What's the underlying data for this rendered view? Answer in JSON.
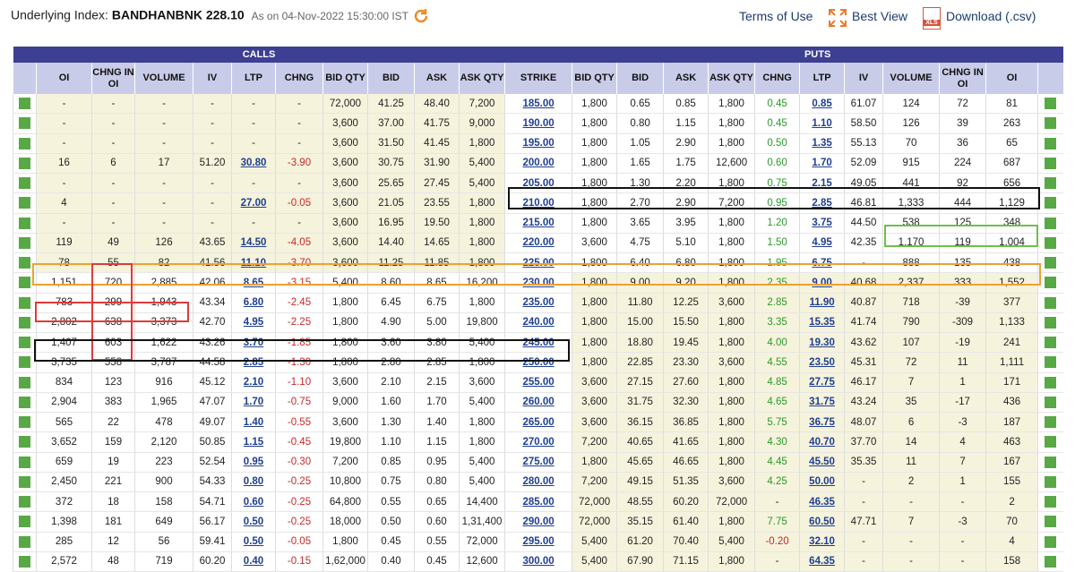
{
  "header": {
    "label": "Underlying Index:",
    "symbol": "BANDHANBNK 228.10",
    "as_on": "As on 04-Nov-2022 15:30:00 IST",
    "links": [
      "Terms of Use",
      "Best View",
      "Download (.csv)"
    ],
    "xls_icon": "XLS"
  },
  "table": {
    "groups": [
      "CALLS",
      "PUTS"
    ],
    "columns": [
      "OI",
      "CHNG IN OI",
      "VOLUME",
      "IV",
      "LTP",
      "CHNG",
      "BID QTY",
      "BID",
      "ASK",
      "ASK QTY",
      "STRIKE",
      "BID QTY",
      "BID",
      "ASK",
      "ASK QTY",
      "CHNG",
      "LTP",
      "IV",
      "VOLUME",
      "CHNG IN OI",
      "OI"
    ],
    "rows": [
      [
        "-",
        "-",
        "-",
        "-",
        "-",
        "-",
        "72,000",
        "41.25",
        "48.40",
        "7,200",
        "185.00",
        "1,800",
        "0.65",
        "0.85",
        "1,800",
        "0.45",
        "0.85",
        "61.07",
        "124",
        "72",
        "81"
      ],
      [
        "-",
        "-",
        "-",
        "-",
        "-",
        "-",
        "3,600",
        "37.00",
        "41.75",
        "9,000",
        "190.00",
        "1,800",
        "0.80",
        "1.15",
        "1,800",
        "0.45",
        "1.10",
        "58.50",
        "126",
        "39",
        "263"
      ],
      [
        "-",
        "-",
        "-",
        "-",
        "-",
        "-",
        "3,600",
        "31.50",
        "41.45",
        "1,800",
        "195.00",
        "1,800",
        "1.05",
        "2.90",
        "1,800",
        "0.50",
        "1.35",
        "55.13",
        "70",
        "36",
        "65"
      ],
      [
        "16",
        "6",
        "17",
        "51.20",
        "30.80",
        "-3.90",
        "3,600",
        "30.75",
        "31.90",
        "5,400",
        "200.00",
        "1,800",
        "1.65",
        "1.75",
        "12,600",
        "0.60",
        "1.70",
        "52.09",
        "915",
        "224",
        "687"
      ],
      [
        "-",
        "-",
        "-",
        "-",
        "-",
        "-",
        "3,600",
        "25.65",
        "27.45",
        "5,400",
        "205.00",
        "1,800",
        "1.30",
        "2.20",
        "1,800",
        "0.75",
        "2.15",
        "49.05",
        "441",
        "92",
        "656"
      ],
      [
        "4",
        "-",
        "-",
        "-",
        "27.00",
        "-0.05",
        "3,600",
        "21.05",
        "23.55",
        "1,800",
        "210.00",
        "1,800",
        "2.70",
        "2.90",
        "7,200",
        "0.95",
        "2.85",
        "46.81",
        "1,333",
        "444",
        "1,129"
      ],
      [
        "-",
        "-",
        "-",
        "-",
        "-",
        "-",
        "3,600",
        "16.95",
        "19.50",
        "1,800",
        "215.00",
        "1,800",
        "3.65",
        "3.95",
        "1,800",
        "1.20",
        "3.75",
        "44.50",
        "538",
        "125",
        "348"
      ],
      [
        "119",
        "49",
        "126",
        "43.65",
        "14.50",
        "-4.05",
        "3,600",
        "14.40",
        "14.65",
        "1,800",
        "220.00",
        "3,600",
        "4.75",
        "5.10",
        "1,800",
        "1.50",
        "4.95",
        "42.35",
        "1,170",
        "119",
        "1,004"
      ],
      [
        "78",
        "55",
        "82",
        "41.56",
        "11.10",
        "-3.70",
        "3,600",
        "11.25",
        "11.85",
        "1,800",
        "225.00",
        "1,800",
        "6.40",
        "6.80",
        "1,800",
        "1.95",
        "6.75",
        "-",
        "888",
        "135",
        "438"
      ],
      [
        "1,151",
        "720",
        "2,885",
        "42.06",
        "8.65",
        "-3.15",
        "5,400",
        "8.60",
        "8.65",
        "16,200",
        "230.00",
        "1,800",
        "9.00",
        "9.20",
        "1,800",
        "2.35",
        "9.00",
        "40.68",
        "2,337",
        "333",
        "1,552"
      ],
      [
        "783",
        "299",
        "1,943",
        "43.34",
        "6.80",
        "-2.45",
        "1,800",
        "6.45",
        "6.75",
        "1,800",
        "235.00",
        "1,800",
        "11.80",
        "12.25",
        "3,600",
        "2.85",
        "11.90",
        "40.87",
        "718",
        "-39",
        "377"
      ],
      [
        "2,802",
        "638",
        "3,373",
        "42.70",
        "4.95",
        "-2.25",
        "1,800",
        "4.90",
        "5.00",
        "19,800",
        "240.00",
        "1,800",
        "15.00",
        "15.50",
        "1,800",
        "3.35",
        "15.35",
        "41.74",
        "790",
        "-309",
        "1,133"
      ],
      [
        "1,407",
        "603",
        "1,622",
        "43.26",
        "3.70",
        "-1.85",
        "1,800",
        "3.60",
        "3.80",
        "5,400",
        "245.00",
        "1,800",
        "18.80",
        "19.45",
        "1,800",
        "4.00",
        "19.30",
        "43.62",
        "107",
        "-19",
        "241"
      ],
      [
        "3,735",
        "558",
        "3,787",
        "44.58",
        "2.85",
        "-1.30",
        "1,800",
        "2.80",
        "2.85",
        "1,800",
        "250.00",
        "1,800",
        "22.85",
        "23.30",
        "3,600",
        "4.55",
        "23.50",
        "45.31",
        "72",
        "11",
        "1,111"
      ],
      [
        "834",
        "123",
        "916",
        "45.12",
        "2.10",
        "-1.10",
        "3,600",
        "2.10",
        "2.15",
        "3,600",
        "255.00",
        "3,600",
        "27.15",
        "27.60",
        "1,800",
        "4.85",
        "27.75",
        "46.17",
        "7",
        "1",
        "171"
      ],
      [
        "2,904",
        "383",
        "1,965",
        "47.07",
        "1.70",
        "-0.75",
        "9,000",
        "1.60",
        "1.70",
        "5,400",
        "260.00",
        "3,600",
        "31.75",
        "32.30",
        "1,800",
        "4.65",
        "31.75",
        "43.24",
        "35",
        "-17",
        "436"
      ],
      [
        "565",
        "22",
        "478",
        "49.07",
        "1.40",
        "-0.55",
        "3,600",
        "1.30",
        "1.40",
        "1,800",
        "265.00",
        "3,600",
        "36.15",
        "36.85",
        "1,800",
        "5.75",
        "36.75",
        "48.07",
        "6",
        "-3",
        "187"
      ],
      [
        "3,652",
        "159",
        "2,120",
        "50.85",
        "1.15",
        "-0.45",
        "19,800",
        "1.10",
        "1.15",
        "1,800",
        "270.00",
        "7,200",
        "40.65",
        "41.65",
        "1,800",
        "4.30",
        "40.70",
        "37.70",
        "14",
        "4",
        "463"
      ],
      [
        "659",
        "19",
        "223",
        "52.54",
        "0.95",
        "-0.30",
        "7,200",
        "0.85",
        "0.95",
        "5,400",
        "275.00",
        "1,800",
        "45.65",
        "46.65",
        "1,800",
        "4.45",
        "45.50",
        "35.35",
        "11",
        "7",
        "167"
      ],
      [
        "2,450",
        "221",
        "900",
        "54.33",
        "0.80",
        "-0.25",
        "10,800",
        "0.75",
        "0.80",
        "5,400",
        "280.00",
        "7,200",
        "49.15",
        "51.35",
        "3,600",
        "4.25",
        "50.00",
        "-",
        "2",
        "1",
        "155"
      ],
      [
        "372",
        "18",
        "158",
        "54.71",
        "0.60",
        "-0.25",
        "64,800",
        "0.55",
        "0.65",
        "14,400",
        "285.00",
        "72,000",
        "48.55",
        "60.20",
        "72,000",
        "-",
        "46.35",
        "-",
        "-",
        "-",
        "2"
      ],
      [
        "1,398",
        "181",
        "649",
        "56.17",
        "0.50",
        "-0.25",
        "18,000",
        "0.50",
        "0.60",
        "1,31,400",
        "290.00",
        "72,000",
        "35.15",
        "61.40",
        "1,800",
        "7.75",
        "60.50",
        "47.71",
        "7",
        "-3",
        "70"
      ],
      [
        "285",
        "12",
        "56",
        "59.41",
        "0.50",
        "-0.05",
        "1,800",
        "0.45",
        "0.55",
        "72,000",
        "295.00",
        "5,400",
        "61.20",
        "70.40",
        "5,400",
        "-0.20",
        "32.10",
        "-",
        "-",
        "-",
        "4"
      ],
      [
        "2,572",
        "48",
        "719",
        "60.20",
        "0.40",
        "-0.15",
        "1,62,000",
        "0.40",
        "0.45",
        "12,600",
        "300.00",
        "5,400",
        "67.90",
        "71.15",
        "1,800",
        "-",
        "64.35",
        "-",
        "-",
        "-",
        "158"
      ]
    ]
  }
}
